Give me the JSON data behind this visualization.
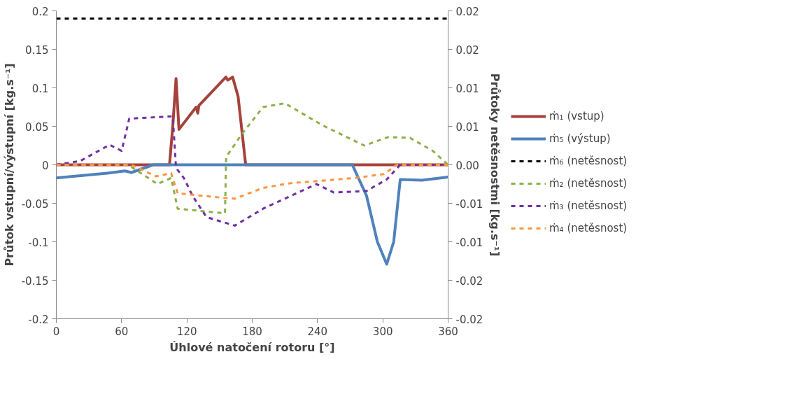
{
  "chart_data": {
    "type": "line",
    "xlabel": "Úhlové natočení rotoru [°]",
    "ylabel": "Průtok vstupní/výstupní [kg.s⁻¹]",
    "y2label": "Průtoky netěsnostmi [kg.s⁻¹]",
    "xlim": [
      0,
      360
    ],
    "xticks": [
      0,
      60,
      120,
      180,
      240,
      300,
      360
    ],
    "ylim": [
      -0.2,
      0.2
    ],
    "yticks": [
      -0.2,
      -0.15,
      -0.1,
      -0.05,
      0,
      0.05,
      0.1,
      0.15,
      0.2
    ],
    "y2lim": [
      -0.02,
      0.02
    ],
    "y2ticks": [
      {
        "value": -0.02,
        "label": "-0.02"
      },
      {
        "value": -0.015,
        "label": "-0.02"
      },
      {
        "value": -0.01,
        "label": "-0.01"
      },
      {
        "value": -0.005,
        "label": "-0.01"
      },
      {
        "value": 0,
        "label": "0.00"
      },
      {
        "value": 0.005,
        "label": "0.01"
      },
      {
        "value": 0.01,
        "label": "0.01"
      },
      {
        "value": 0.015,
        "label": "0.02"
      },
      {
        "value": 0.02,
        "label": "0.02"
      }
    ],
    "grid": false,
    "legend": "right",
    "marker": "none",
    "series": [
      {
        "name": "ṁ₁ (vstup)",
        "color": "#a5423b",
        "line_style": "solid",
        "x": [
          0,
          104,
          107,
          110,
          112.7,
          128.5,
          130,
          131,
          155.8,
          157.5,
          162,
          167,
          174,
          360
        ],
        "values": [
          0,
          0,
          0.05,
          0.112,
          0.046,
          0.075,
          0.067,
          0.077,
          0.114,
          0.11,
          0.114,
          0.089,
          0,
          0
        ]
      },
      {
        "name": "ṁ₅ (výstup)",
        "color": "#4f81bd",
        "line_style": "solid",
        "x": [
          0,
          46.7,
          63,
          69,
          89,
          272,
          285,
          295,
          303.6,
          310,
          316,
          336,
          360
        ],
        "values": [
          -0.017,
          -0.011,
          -0.008,
          -0.01,
          0,
          0,
          -0.04,
          -0.1,
          -0.129,
          -0.1,
          -0.019,
          -0.02,
          -0.016
        ]
      },
      {
        "name": "ṁ₆ (netěsnost)",
        "color": "#000000",
        "line_style": "dashed",
        "axis": "y2",
        "x": [
          0,
          360
        ],
        "values": [
          0.019,
          0.019
        ]
      },
      {
        "name": "ṁ₂ (netěsnost)",
        "color": "#8db04a",
        "line_style": "dashed",
        "axis": "y2",
        "x": [
          0,
          66,
          93,
          105.5,
          111.5,
          155,
          156,
          170,
          190,
          210,
          245,
          283,
          305,
          325,
          346,
          360
        ],
        "values": [
          0,
          0,
          -0.0025,
          -0.0017,
          -0.0057,
          -0.0063,
          0.001,
          0.0039,
          0.0075,
          0.008,
          0.0051,
          0.0025,
          0.0036,
          0.0035,
          0.0018,
          0
        ]
      },
      {
        "name": "ṁ₃ (netěsnost)",
        "color": "#7030a0",
        "line_style": "dashed",
        "axis": "y2",
        "x": [
          0,
          22,
          49,
          60,
          67,
          107,
          110,
          117.6,
          125,
          138,
          164,
          190,
          239,
          255,
          285,
          303.6,
          316,
          360
        ],
        "values": [
          0,
          0.0005,
          0.0026,
          0.0018,
          0.006,
          0.0063,
          -0.0004,
          -0.0018,
          -0.004,
          -0.0068,
          -0.0079,
          -0.0057,
          -0.0025,
          -0.0036,
          -0.0034,
          -0.0019,
          0,
          0
        ]
      },
      {
        "name": "ṁ₄ (netěsnost)",
        "color": "#f79646",
        "line_style": "dashed",
        "axis": "y2",
        "x": [
          0,
          69,
          91.5,
          105.5,
          111.5,
          154,
          164,
          190,
          214.5,
          275,
          301,
          313,
          360
        ],
        "values": [
          0,
          0,
          -0.0015,
          -0.0011,
          -0.0037,
          -0.0043,
          -0.0044,
          -0.003,
          -0.0024,
          -0.0017,
          -0.0012,
          0,
          0
        ]
      }
    ]
  }
}
